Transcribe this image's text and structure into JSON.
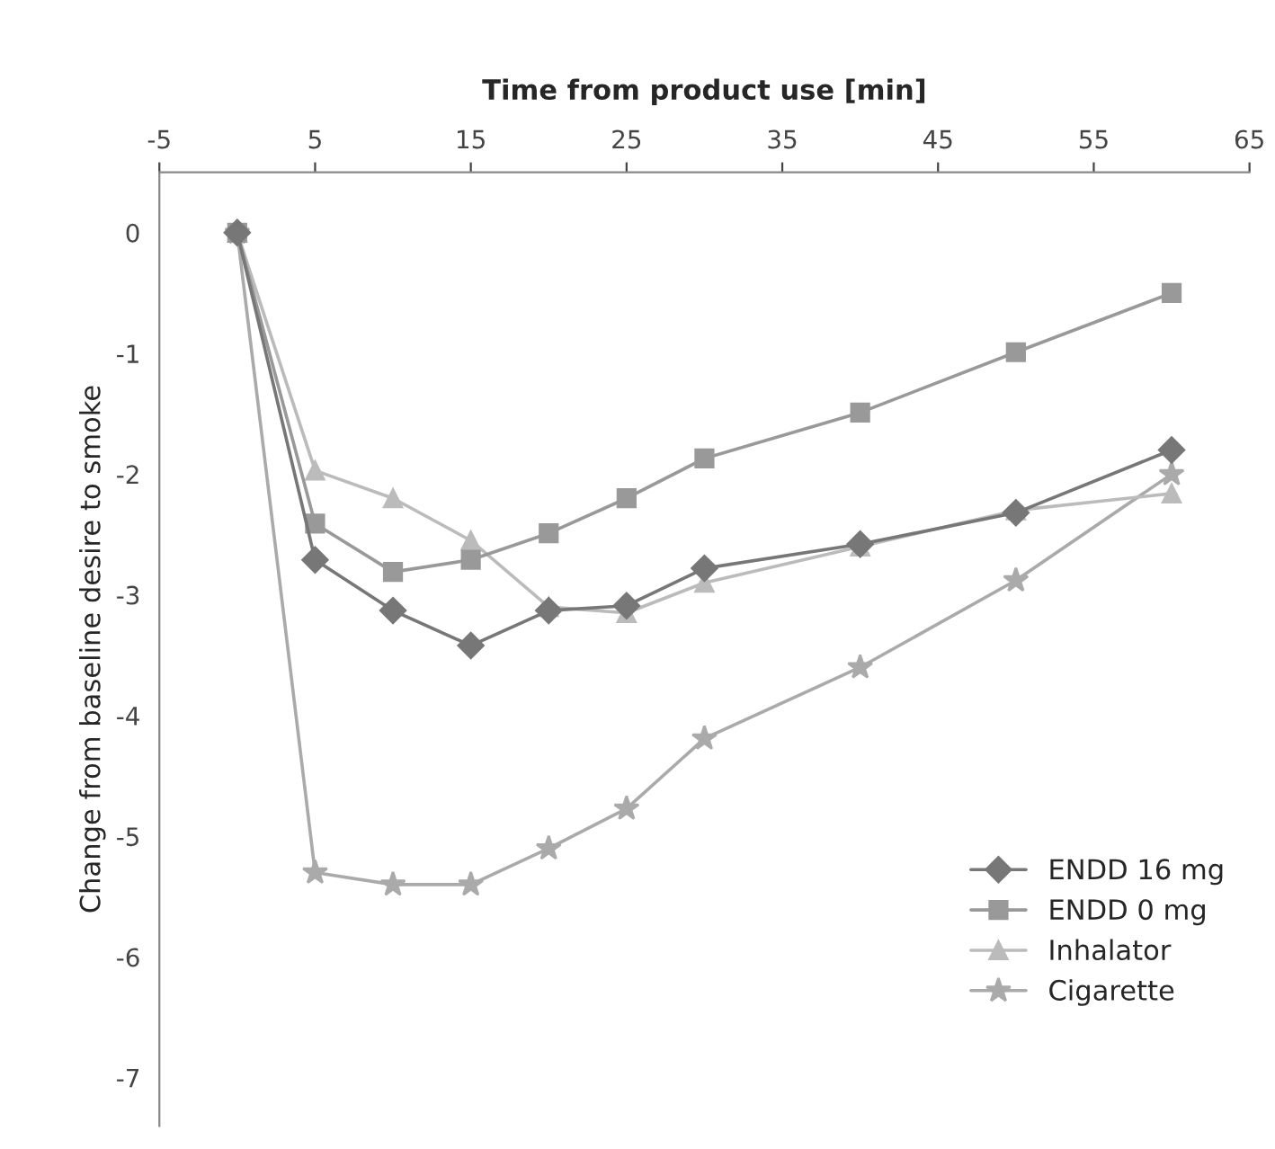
{
  "chart_data": {
    "type": "line",
    "xlabel": "Time from product use [min]",
    "ylabel": "Change from baseline desire to smoke",
    "x": [
      0,
      5,
      10,
      15,
      20,
      25,
      30,
      40,
      50,
      60
    ],
    "xlim": [
      -5,
      65
    ],
    "xticks": [
      -5,
      5,
      15,
      25,
      35,
      45,
      55,
      65
    ],
    "ylim": [
      -7.4,
      0.5
    ],
    "yticks": [
      0,
      -1,
      -2,
      -3,
      -4,
      -5,
      -6,
      -7
    ],
    "grid": false,
    "legend": "bottom right",
    "line_style": "solid",
    "series": [
      {
        "name": "ENDD 16 mg",
        "color": "#777777",
        "marker": "diamond",
        "values": [
          0,
          -2.71,
          -3.13,
          -3.42,
          -3.13,
          -3.09,
          -2.78,
          -2.58,
          -2.32,
          -1.8
        ]
      },
      {
        "name": "ENDD 0 mg",
        "color": "#999999",
        "marker": "square",
        "values": [
          0,
          -2.41,
          -2.81,
          -2.71,
          -2.49,
          -2.2,
          -1.87,
          -1.49,
          -0.99,
          -0.5
        ]
      },
      {
        "name": "Inhalator",
        "color": "#bbbbbb",
        "marker": "triangle",
        "values": [
          0,
          -1.97,
          -2.2,
          -2.55,
          -3.1,
          -3.15,
          -2.9,
          -2.6,
          -2.3,
          -2.16
        ]
      },
      {
        "name": "Cigarette",
        "color": "#aaaaaa",
        "marker": "star",
        "values": [
          0,
          -5.3,
          -5.4,
          -5.4,
          -5.1,
          -4.77,
          -4.19,
          -3.6,
          -2.88,
          -2.0
        ]
      }
    ]
  }
}
